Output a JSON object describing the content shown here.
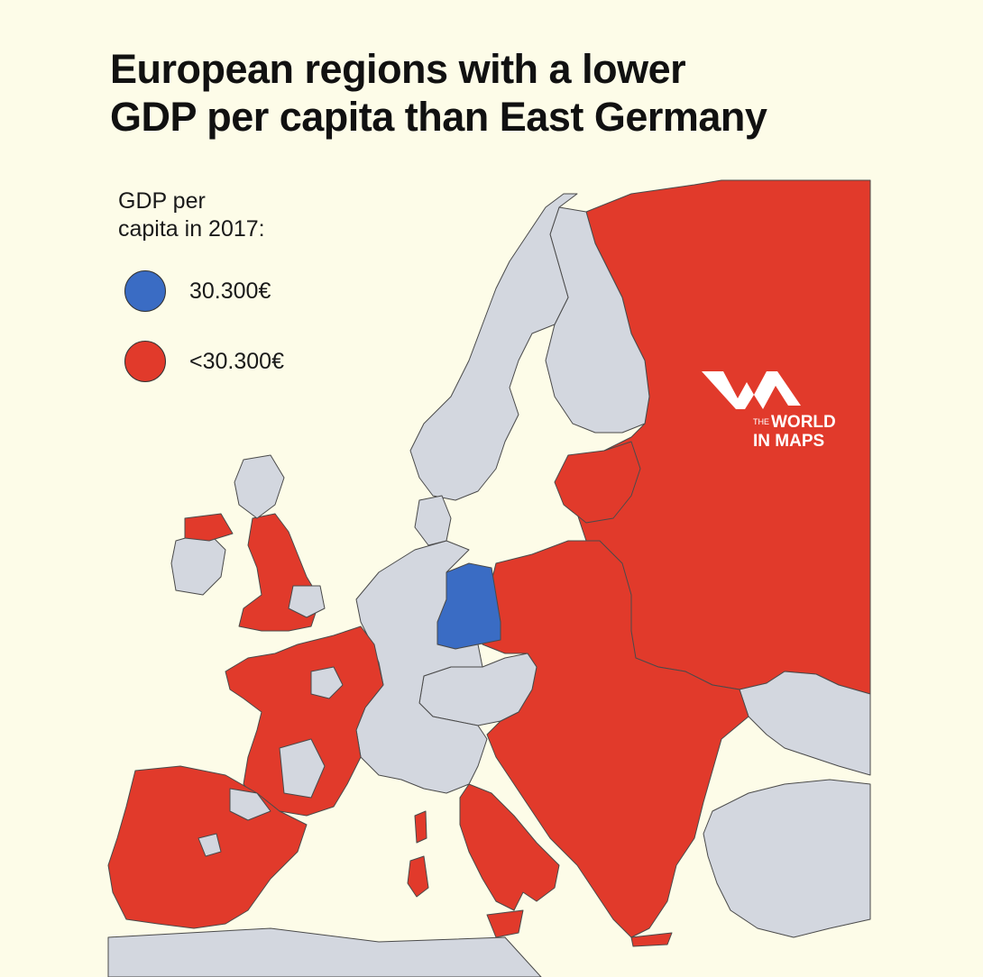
{
  "title": {
    "line1": "European regions with a lower",
    "line2": "GDP per capita than East Germany"
  },
  "legend": {
    "heading_line1": "GDP per",
    "heading_line2": "capita in 2017:",
    "items": [
      {
        "label": "30.300€",
        "color": "#3a6cc4"
      },
      {
        "label": "<30.300€",
        "color": "#e13a2b"
      }
    ]
  },
  "logo": {
    "the": "THE",
    "word1": "WORLD",
    "word2": "IN MAPS"
  },
  "map_colors": {
    "below": "#e13a2b",
    "equal": "#3a6cc4",
    "other": "#d3d7df",
    "border": "#4a4a4a"
  }
}
